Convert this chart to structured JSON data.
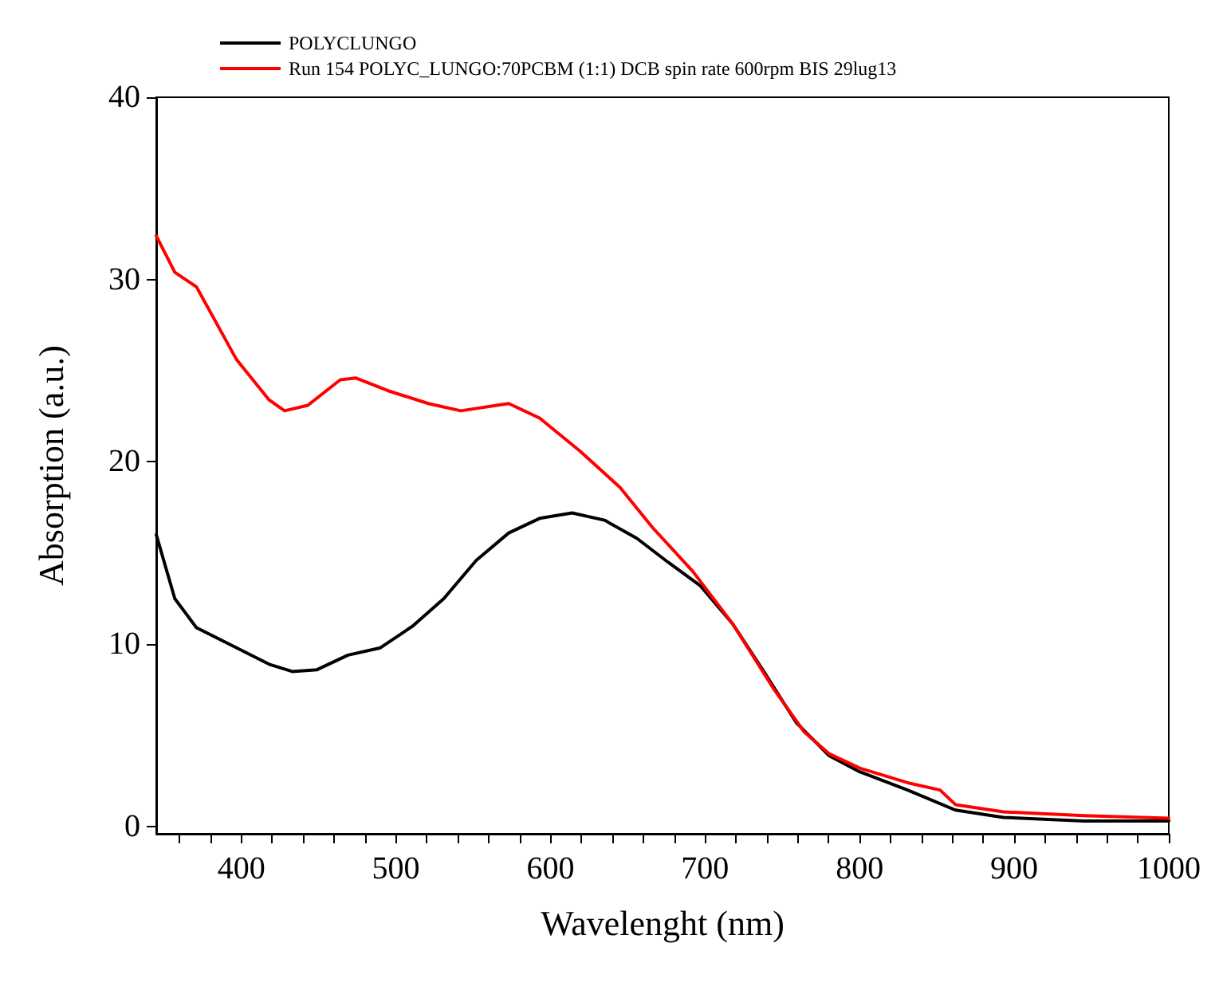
{
  "chart_data": {
    "type": "line",
    "xlabel": "Wavelenght (nm)",
    "ylabel": "Absorption (a.u.)",
    "x": [
      345,
      357,
      371,
      397,
      418,
      428,
      443,
      464,
      474,
      495,
      521,
      542,
      573,
      593,
      619,
      645,
      666,
      692,
      718,
      744,
      764,
      780,
      800,
      831,
      852,
      862,
      893,
      945,
      1000
    ],
    "series": [
      {
        "name": "POLYCLUNGO",
        "color": "#000000",
        "x": [
          345,
          357,
          371,
          397,
          418,
          433,
          449,
          469,
          490,
          511,
          531,
          552,
          573,
          593,
          614,
          635,
          656,
          676,
          697,
          718,
          738,
          759,
          780,
          800,
          831,
          862,
          893,
          945,
          1000
        ],
        "values": [
          16.0,
          12.5,
          10.9,
          9.8,
          8.9,
          8.5,
          8.6,
          9.4,
          9.8,
          11.0,
          12.5,
          14.6,
          16.1,
          16.9,
          17.2,
          16.8,
          15.8,
          14.5,
          13.2,
          11.1,
          8.5,
          5.7,
          3.9,
          3.0,
          2.0,
          0.9,
          0.5,
          0.3,
          0.3
        ]
      },
      {
        "name": "Run 154 POLYC_LUNGO:70PCBM (1:1) DCB spin rate 600rpm BIS 29lug13",
        "color": "#ff0000",
        "values": [
          32.4,
          30.4,
          29.6,
          25.6,
          23.4,
          22.8,
          23.1,
          24.5,
          24.6,
          23.9,
          23.2,
          22.8,
          23.2,
          22.4,
          20.6,
          18.6,
          16.4,
          14.0,
          11.1,
          7.6,
          5.2,
          4.0,
          3.2,
          2.4,
          2.0,
          1.2,
          0.8,
          0.6,
          0.45
        ]
      }
    ],
    "xlim": [
      345,
      1000
    ],
    "xticks": [
      {
        "value": 360,
        "label": null
      },
      {
        "value": 380,
        "label": null
      },
      400,
      {
        "value": 420,
        "label": null
      },
      {
        "value": 440,
        "label": null
      },
      {
        "value": 460,
        "label": null
      },
      {
        "value": 480,
        "label": null
      },
      500,
      {
        "value": 520,
        "label": null
      },
      {
        "value": 540,
        "label": null
      },
      {
        "value": 560,
        "label": null
      },
      {
        "value": 580,
        "label": null
      },
      600,
      {
        "value": 620,
        "label": null
      },
      {
        "value": 640,
        "label": null
      },
      {
        "value": 660,
        "label": null
      },
      {
        "value": 680,
        "label": null
      },
      700,
      {
        "value": 720,
        "label": null
      },
      {
        "value": 740,
        "label": null
      },
      {
        "value": 760,
        "label": null
      },
      {
        "value": 780,
        "label": null
      },
      800,
      {
        "value": 820,
        "label": null
      },
      {
        "value": 840,
        "label": null
      },
      {
        "value": 860,
        "label": null
      },
      {
        "value": 880,
        "label": null
      },
      900,
      {
        "value": 920,
        "label": null
      },
      {
        "value": 940,
        "label": null
      },
      {
        "value": 960,
        "label": null
      },
      {
        "value": 980,
        "label": null
      },
      1000
    ],
    "ylim": [
      -0.4,
      40
    ],
    "yticks": [
      0,
      10,
      20,
      30,
      40
    ],
    "grid": false,
    "legend": "top left",
    "marker": "none",
    "line_style": "solid"
  }
}
